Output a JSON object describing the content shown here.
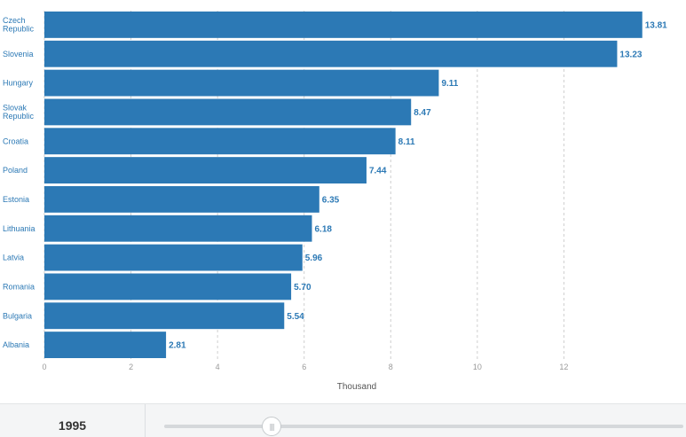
{
  "chart_data": {
    "type": "bar",
    "orientation": "horizontal",
    "categories": [
      [
        "Czech",
        "Republic"
      ],
      [
        "Slovenia"
      ],
      [
        "Hungary"
      ],
      [
        "Slovak",
        "Republic"
      ],
      [
        "Croatia"
      ],
      [
        "Poland"
      ],
      [
        "Estonia"
      ],
      [
        "Lithuania"
      ],
      [
        "Latvia"
      ],
      [
        "Romania"
      ],
      [
        "Bulgaria"
      ],
      [
        "Albania"
      ]
    ],
    "values": [
      13.81,
      13.23,
      9.11,
      8.47,
      8.11,
      7.44,
      6.35,
      6.18,
      5.96,
      5.7,
      5.54,
      2.81
    ],
    "value_labels": [
      "13.81",
      "13.23",
      "9.11",
      "8.47",
      "8.11",
      "7.44",
      "6.35",
      "6.18",
      "5.96",
      "5.70",
      "5.54",
      "2.81"
    ],
    "xlabel": "Thousand",
    "xlim": [
      0,
      14
    ],
    "xticks": [
      0,
      2,
      4,
      6,
      8,
      10,
      12
    ],
    "grid": "vertical-dashed",
    "bar_color": "#2c79b5"
  },
  "controls": {
    "year_label": "1995",
    "slider_grip": "|||"
  }
}
